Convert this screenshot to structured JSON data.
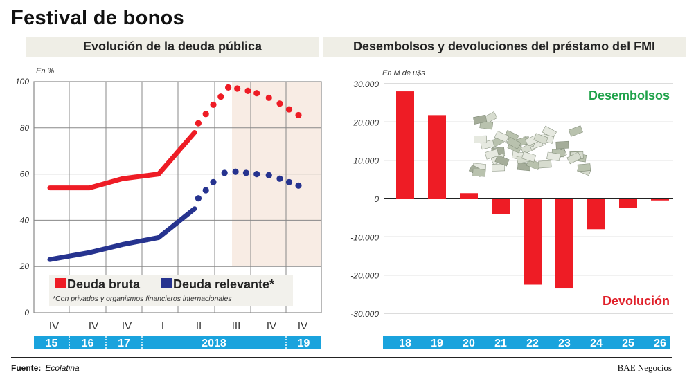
{
  "title": "Festival de bonos",
  "left_subtitle": "Evolución de la deuda pública",
  "right_subtitle": "Desembolsos y devoluciones del préstamo del FMI",
  "footer": {
    "source_label": "Fuente:",
    "source": "Ecolatina",
    "brand": "BAE Negocios"
  },
  "chart_data": [
    {
      "type": "line",
      "unit_label": "En %",
      "ylim": [
        0,
        100
      ],
      "yticks": [
        "0",
        "20",
        "40",
        "60",
        "80",
        "100"
      ],
      "grid": true,
      "x_labels": [
        "IV",
        "IV",
        "IV",
        "I",
        "II",
        "III",
        "IV",
        "IV"
      ],
      "year_labels": [
        "15",
        "16",
        "17",
        "2018",
        "19"
      ],
      "projection_shading": {
        "from_label_index": 5,
        "to_label_index": 7,
        "color": "#f8ece4"
      },
      "legend_placement": "bottom",
      "legend_note": "*Con privados y organismos financieros internacionales",
      "series": [
        {
          "name": "Deuda bruta",
          "color": "#ee1c25",
          "values": [
            [
              0,
              54
            ],
            [
              1,
              54
            ],
            [
              2,
              58
            ],
            [
              3,
              60
            ],
            [
              4,
              78
            ]
          ],
          "projection": [
            [
              4.1,
              82
            ],
            [
              4.3,
              86
            ],
            [
              4.5,
              90
            ],
            [
              4.7,
              93.5
            ],
            [
              4.9,
              97.5
            ],
            [
              5.15,
              97
            ],
            [
              5.45,
              96
            ],
            [
              5.7,
              95
            ],
            [
              6.05,
              93
            ],
            [
              6.4,
              90.5
            ],
            [
              6.7,
              88
            ],
            [
              7,
              85.5
            ]
          ]
        },
        {
          "name": "Deuda relevante*",
          "color": "#26338f",
          "values": [
            [
              0,
              23
            ],
            [
              1,
              26
            ],
            [
              2,
              29.5
            ],
            [
              3,
              32.5
            ],
            [
              4,
              45
            ]
          ],
          "projection": [
            [
              4.1,
              49.5
            ],
            [
              4.3,
              53
            ],
            [
              4.5,
              56.5
            ],
            [
              4.8,
              60.5
            ],
            [
              5.1,
              61
            ],
            [
              5.4,
              60.5
            ],
            [
              5.7,
              60
            ],
            [
              6.05,
              59.5
            ],
            [
              6.4,
              58
            ],
            [
              6.7,
              56.5
            ],
            [
              7,
              55
            ]
          ]
        }
      ]
    },
    {
      "type": "bar",
      "unit_label": "En M de u$s",
      "ylim": [
        -30000,
        30000
      ],
      "yticks": [
        "-30.000",
        "-20.000",
        "-10.000",
        "0",
        "10.000",
        "20.000",
        "30.000"
      ],
      "grid": true,
      "categories": [
        "18",
        "19",
        "20",
        "21",
        "22",
        "23",
        "24",
        "25",
        "26"
      ],
      "values": [
        28000,
        21800,
        1400,
        -4000,
        -22500,
        -23500,
        -8000,
        -2500,
        -500
      ],
      "bar_color": "#ee1c25",
      "annotations": [
        {
          "text": "Desembolsos",
          "color": "#1fa24a"
        },
        {
          "text": "Devolución",
          "color": "#e0202a"
        }
      ]
    }
  ],
  "colors": {
    "band": "#1aa3dd",
    "subtitle_bg": "#efeee6"
  }
}
